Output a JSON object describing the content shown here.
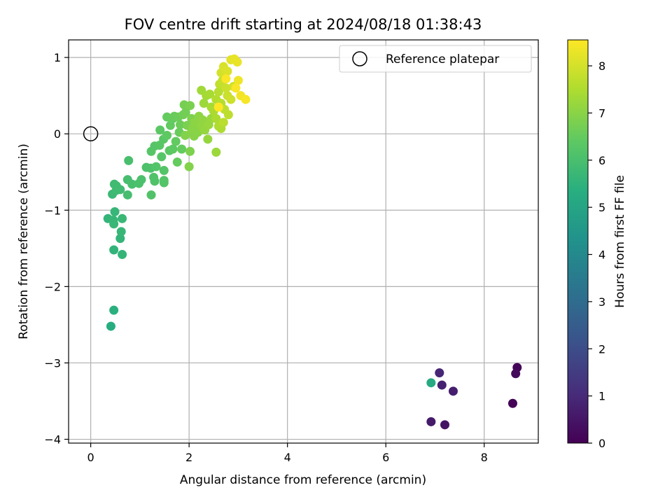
{
  "chart_data": {
    "type": "scatter",
    "title": "FOV centre drift starting at 2024/08/18 01:38:43",
    "xlabel": "Angular distance from reference (arcmin)",
    "ylabel": "Rotation from reference (arcmin)",
    "xlim": [
      -0.45,
      9.1
    ],
    "ylim": [
      -4.05,
      1.23
    ],
    "xticks": [
      0,
      2,
      4,
      6,
      8
    ],
    "yticks": [
      1,
      0,
      -1,
      -2,
      -3,
      -4
    ],
    "xtick_labels": [
      "0",
      "2",
      "4",
      "6",
      "8"
    ],
    "ytick_labels": [
      "1",
      "0",
      "−1",
      "−2",
      "−3",
      "−4"
    ],
    "grid": true,
    "legend": {
      "placement": "upper right",
      "entries": [
        "Reference platepar"
      ]
    },
    "reference_point": {
      "x": 0,
      "y": 0
    },
    "colorbar": {
      "label": "Hours from first FF file",
      "range": [
        0,
        8.55
      ],
      "ticks": [
        0,
        1,
        2,
        3,
        4,
        5,
        6,
        7,
        8
      ],
      "tick_labels": [
        "0",
        "1",
        "2",
        "3",
        "4",
        "5",
        "6",
        "7",
        "8"
      ],
      "colormap": "viridis"
    },
    "points": [
      {
        "x": 8.58,
        "y": -3.53,
        "c": 0.05
      },
      {
        "x": 8.67,
        "y": -3.06,
        "c": 0.1
      },
      {
        "x": 8.64,
        "y": -3.14,
        "c": 0.2
      },
      {
        "x": 7.2,
        "y": -3.81,
        "c": 0.45
      },
      {
        "x": 6.92,
        "y": -3.77,
        "c": 0.6
      },
      {
        "x": 7.37,
        "y": -3.37,
        "c": 0.7
      },
      {
        "x": 7.14,
        "y": -3.29,
        "c": 0.8
      },
      {
        "x": 7.09,
        "y": -3.13,
        "c": 0.9
      },
      {
        "x": 6.92,
        "y": -3.26,
        "c": 5.15
      },
      {
        "x": 0.41,
        "y": -2.52,
        "c": 5.3
      },
      {
        "x": 0.47,
        "y": -2.31,
        "c": 5.4
      },
      {
        "x": 0.47,
        "y": -1.52,
        "c": 5.55
      },
      {
        "x": 0.64,
        "y": -1.58,
        "c": 5.6
      },
      {
        "x": 0.6,
        "y": -1.37,
        "c": 5.6
      },
      {
        "x": 0.62,
        "y": -1.28,
        "c": 5.65
      },
      {
        "x": 0.35,
        "y": -1.11,
        "c": 5.6
      },
      {
        "x": 0.46,
        "y": -1.13,
        "c": 5.65
      },
      {
        "x": 0.47,
        "y": -1.18,
        "c": 5.7
      },
      {
        "x": 0.49,
        "y": -1.02,
        "c": 5.65
      },
      {
        "x": 0.64,
        "y": -1.11,
        "c": 5.7
      },
      {
        "x": 0.44,
        "y": -0.79,
        "c": 5.75
      },
      {
        "x": 0.52,
        "y": -0.74,
        "c": 5.8
      },
      {
        "x": 0.6,
        "y": -0.73,
        "c": 5.85
      },
      {
        "x": 0.48,
        "y": -0.66,
        "c": 5.8
      },
      {
        "x": 0.52,
        "y": -0.68,
        "c": 5.85
      },
      {
        "x": 0.75,
        "y": -0.8,
        "c": 5.95
      },
      {
        "x": 0.75,
        "y": -0.6,
        "c": 5.95
      },
      {
        "x": 0.84,
        "y": -0.66,
        "c": 6.0
      },
      {
        "x": 0.77,
        "y": -0.35,
        "c": 6.0
      },
      {
        "x": 1.03,
        "y": -0.6,
        "c": 6.05
      },
      {
        "x": 0.98,
        "y": -0.65,
        "c": 6.05
      },
      {
        "x": 1.13,
        "y": -0.44,
        "c": 6.1
      },
      {
        "x": 1.22,
        "y": -0.45,
        "c": 6.1
      },
      {
        "x": 1.23,
        "y": -0.8,
        "c": 6.15
      },
      {
        "x": 1.3,
        "y": -0.62,
        "c": 6.15
      },
      {
        "x": 1.28,
        "y": -0.57,
        "c": 6.15
      },
      {
        "x": 1.33,
        "y": -0.43,
        "c": 6.2
      },
      {
        "x": 1.49,
        "y": -0.48,
        "c": 6.2
      },
      {
        "x": 1.49,
        "y": -0.61,
        "c": 6.2
      },
      {
        "x": 1.49,
        "y": -0.64,
        "c": 6.2
      },
      {
        "x": 1.23,
        "y": -0.23,
        "c": 6.25
      },
      {
        "x": 1.3,
        "y": -0.16,
        "c": 6.25
      },
      {
        "x": 1.44,
        "y": -0.3,
        "c": 6.25
      },
      {
        "x": 1.4,
        "y": -0.15,
        "c": 6.3
      },
      {
        "x": 1.48,
        "y": -0.07,
        "c": 6.3
      },
      {
        "x": 1.41,
        "y": 0.05,
        "c": 6.35
      },
      {
        "x": 1.6,
        "y": -0.22,
        "c": 6.35
      },
      {
        "x": 1.67,
        "y": -0.2,
        "c": 6.4
      },
      {
        "x": 1.55,
        "y": -0.02,
        "c": 6.4
      },
      {
        "x": 1.62,
        "y": 0.11,
        "c": 6.45
      },
      {
        "x": 1.73,
        "y": -0.1,
        "c": 6.45
      },
      {
        "x": 1.85,
        "y": -0.2,
        "c": 6.5
      },
      {
        "x": 1.76,
        "y": -0.37,
        "c": 6.5
      },
      {
        "x": 1.8,
        "y": 0.02,
        "c": 6.55
      },
      {
        "x": 1.67,
        "y": 0.2,
        "c": 6.5
      },
      {
        "x": 1.55,
        "y": 0.22,
        "c": 6.5
      },
      {
        "x": 1.7,
        "y": 0.23,
        "c": 6.55
      },
      {
        "x": 1.82,
        "y": 0.12,
        "c": 6.6
      },
      {
        "x": 1.78,
        "y": 0.22,
        "c": 6.6
      },
      {
        "x": 1.88,
        "y": 0.25,
        "c": 6.65
      },
      {
        "x": 1.93,
        "y": 0.28,
        "c": 6.7
      },
      {
        "x": 1.9,
        "y": 0.38,
        "c": 6.75
      },
      {
        "x": 2.02,
        "y": 0.37,
        "c": 6.8
      },
      {
        "x": 1.96,
        "y": 0.11,
        "c": 6.8
      },
      {
        "x": 2.05,
        "y": 0.2,
        "c": 6.85
      },
      {
        "x": 2.02,
        "y": -0.23,
        "c": 6.85
      },
      {
        "x": 2.0,
        "y": -0.43,
        "c": 6.9
      },
      {
        "x": 1.92,
        "y": -0.02,
        "c": 6.9
      },
      {
        "x": 2.05,
        "y": 0.03,
        "c": 6.95
      },
      {
        "x": 2.1,
        "y": -0.03,
        "c": 6.95
      },
      {
        "x": 2.08,
        "y": 0.08,
        "c": 7.0
      },
      {
        "x": 2.18,
        "y": 0.02,
        "c": 7.0
      },
      {
        "x": 2.12,
        "y": 0.15,
        "c": 7.05
      },
      {
        "x": 2.2,
        "y": 0.23,
        "c": 7.05
      },
      {
        "x": 2.28,
        "y": 0.18,
        "c": 7.1
      },
      {
        "x": 2.25,
        "y": 0.1,
        "c": 7.1
      },
      {
        "x": 2.32,
        "y": 0.05,
        "c": 7.15
      },
      {
        "x": 2.38,
        "y": -0.07,
        "c": 7.15
      },
      {
        "x": 2.4,
        "y": 0.12,
        "c": 7.2
      },
      {
        "x": 2.45,
        "y": 0.2,
        "c": 7.2
      },
      {
        "x": 2.55,
        "y": -0.24,
        "c": 7.25
      },
      {
        "x": 2.3,
        "y": 0.4,
        "c": 7.25
      },
      {
        "x": 2.25,
        "y": 0.57,
        "c": 7.3
      },
      {
        "x": 2.35,
        "y": 0.5,
        "c": 7.35
      },
      {
        "x": 2.42,
        "y": 0.52,
        "c": 7.4
      },
      {
        "x": 2.45,
        "y": 0.35,
        "c": 7.4
      },
      {
        "x": 2.5,
        "y": 0.3,
        "c": 7.45
      },
      {
        "x": 2.55,
        "y": 0.2,
        "c": 7.45
      },
      {
        "x": 2.6,
        "y": 0.1,
        "c": 7.5
      },
      {
        "x": 2.65,
        "y": 0.07,
        "c": 7.5
      },
      {
        "x": 2.55,
        "y": 0.45,
        "c": 7.55
      },
      {
        "x": 2.6,
        "y": 0.55,
        "c": 7.6
      },
      {
        "x": 2.65,
        "y": 0.4,
        "c": 7.6
      },
      {
        "x": 2.7,
        "y": 0.15,
        "c": 7.65
      },
      {
        "x": 2.72,
        "y": 0.32,
        "c": 7.7
      },
      {
        "x": 2.8,
        "y": 0.25,
        "c": 7.7
      },
      {
        "x": 2.62,
        "y": 0.65,
        "c": 7.75
      },
      {
        "x": 2.68,
        "y": 0.7,
        "c": 7.8
      },
      {
        "x": 2.75,
        "y": 0.6,
        "c": 7.85
      },
      {
        "x": 2.78,
        "y": 0.5,
        "c": 7.85
      },
      {
        "x": 2.85,
        "y": 0.45,
        "c": 7.9
      },
      {
        "x": 2.9,
        "y": 0.62,
        "c": 7.95
      },
      {
        "x": 2.65,
        "y": 0.8,
        "c": 8.0
      },
      {
        "x": 2.7,
        "y": 0.88,
        "c": 8.05
      },
      {
        "x": 2.78,
        "y": 0.82,
        "c": 8.1
      },
      {
        "x": 2.85,
        "y": 0.97,
        "c": 8.2
      },
      {
        "x": 2.92,
        "y": 0.98,
        "c": 8.25
      },
      {
        "x": 2.98,
        "y": 0.94,
        "c": 8.3
      },
      {
        "x": 3.0,
        "y": 0.7,
        "c": 8.35
      },
      {
        "x": 3.05,
        "y": 0.5,
        "c": 8.4
      },
      {
        "x": 3.15,
        "y": 0.45,
        "c": 8.45
      },
      {
        "x": 2.95,
        "y": 0.6,
        "c": 8.5
      },
      {
        "x": 2.75,
        "y": 0.72,
        "c": 8.5
      },
      {
        "x": 2.6,
        "y": 0.35,
        "c": 8.55
      }
    ]
  }
}
